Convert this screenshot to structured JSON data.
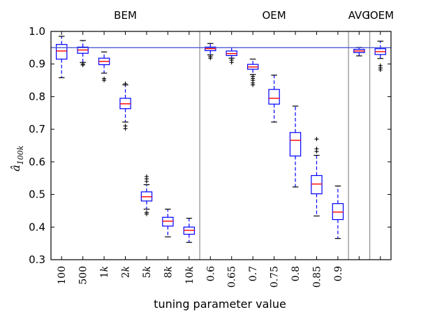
{
  "chart_data": {
    "type": "boxplot",
    "title": "",
    "xlabel": "tuning parameter value",
    "ylabel": "â",
    "ylabel_subscript": "100k",
    "ylim": [
      0.3,
      1.0
    ],
    "yticks": [
      "0.3",
      "0.4",
      "0.5",
      "0.6",
      "0.7",
      "0.8",
      "0.9",
      "1.0"
    ],
    "reference_line": 0.95,
    "groups": [
      {
        "label": "BEM",
        "start": 0,
        "end": 6
      },
      {
        "label": "OEM",
        "start": 7,
        "end": 13
      },
      {
        "label": "AVG",
        "start": 14,
        "end": 14
      },
      {
        "label": "IOEM",
        "start": 15,
        "end": 15
      }
    ],
    "dividers_after": [
      6,
      13,
      14
    ],
    "categories": [
      {
        "label": "100",
        "num": "100",
        "suffix": ""
      },
      {
        "label": "500",
        "num": "500",
        "suffix": ""
      },
      {
        "label": "1k",
        "num": "1",
        "suffix": "k"
      },
      {
        "label": "2k",
        "num": "2",
        "suffix": "k"
      },
      {
        "label": "5k",
        "num": "5",
        "suffix": "k"
      },
      {
        "label": "8k",
        "num": "8",
        "suffix": "k"
      },
      {
        "label": "10k",
        "num": "10",
        "suffix": "k"
      },
      {
        "label": "0.6",
        "num": "0.6",
        "suffix": ""
      },
      {
        "label": "0.65",
        "num": "0.65",
        "suffix": ""
      },
      {
        "label": "0.7",
        "num": "0.7",
        "suffix": ""
      },
      {
        "label": "0.75",
        "num": "0.75",
        "suffix": ""
      },
      {
        "label": "0.8",
        "num": "0.8",
        "suffix": ""
      },
      {
        "label": "0.85",
        "num": "0.85",
        "suffix": ""
      },
      {
        "label": "0.9",
        "num": "0.9",
        "suffix": ""
      },
      {
        "label": "",
        "num": "",
        "suffix": ""
      },
      {
        "label": "",
        "num": "",
        "suffix": ""
      }
    ],
    "boxes": [
      {
        "whislo": 0.858,
        "q1": 0.915,
        "med": 0.94,
        "q3": 0.96,
        "whishi": 0.985,
        "fliers": []
      },
      {
        "whislo": 0.905,
        "q1": 0.933,
        "med": 0.943,
        "q3": 0.952,
        "whishi": 0.972,
        "fliers": [
          0.9,
          0.897
        ]
      },
      {
        "whislo": 0.872,
        "q1": 0.898,
        "med": 0.908,
        "q3": 0.918,
        "whishi": 0.937,
        "fliers": [
          0.855,
          0.85
        ]
      },
      {
        "whislo": 0.722,
        "q1": 0.763,
        "med": 0.778,
        "q3": 0.795,
        "whishi": 0.836,
        "fliers": [
          0.84,
          0.71,
          0.702
        ]
      },
      {
        "whislo": 0.455,
        "q1": 0.48,
        "med": 0.493,
        "q3": 0.508,
        "whishi": 0.53,
        "fliers": [
          0.555,
          0.548,
          0.54,
          0.445,
          0.44
        ]
      },
      {
        "whislo": 0.37,
        "q1": 0.403,
        "med": 0.418,
        "q3": 0.43,
        "whishi": 0.455,
        "fliers": []
      },
      {
        "whislo": 0.353,
        "q1": 0.378,
        "med": 0.39,
        "q3": 0.4,
        "whishi": 0.427,
        "fliers": []
      },
      {
        "whislo": 0.928,
        "q1": 0.941,
        "med": 0.947,
        "q3": 0.952,
        "whishi": 0.963,
        "fliers": [
          0.923,
          0.918
        ]
      },
      {
        "whislo": 0.918,
        "q1": 0.926,
        "med": 0.932,
        "q3": 0.94,
        "whishi": 0.95,
        "fliers": [
          0.912,
          0.905
        ]
      },
      {
        "whislo": 0.868,
        "q1": 0.884,
        "med": 0.891,
        "q3": 0.899,
        "whishi": 0.915,
        "fliers": [
          0.862,
          0.856,
          0.85,
          0.842,
          0.836
        ]
      },
      {
        "whislo": 0.722,
        "q1": 0.777,
        "med": 0.795,
        "q3": 0.822,
        "whishi": 0.866,
        "fliers": []
      },
      {
        "whislo": 0.523,
        "q1": 0.618,
        "med": 0.666,
        "q3": 0.69,
        "whishi": 0.771,
        "fliers": []
      },
      {
        "whislo": 0.434,
        "q1": 0.502,
        "med": 0.532,
        "q3": 0.558,
        "whishi": 0.62,
        "fliers": [
          0.67,
          0.64,
          0.632
        ]
      },
      {
        "whislo": 0.365,
        "q1": 0.423,
        "med": 0.446,
        "q3": 0.472,
        "whishi": 0.526,
        "fliers": []
      },
      {
        "whislo": 0.925,
        "q1": 0.935,
        "med": 0.94,
        "q3": 0.945,
        "whishi": 0.951,
        "fliers": []
      },
      {
        "whislo": 0.917,
        "q1": 0.929,
        "med": 0.938,
        "q3": 0.947,
        "whishi": 0.97,
        "fliers": [
          0.895,
          0.888,
          0.882
        ]
      }
    ]
  }
}
